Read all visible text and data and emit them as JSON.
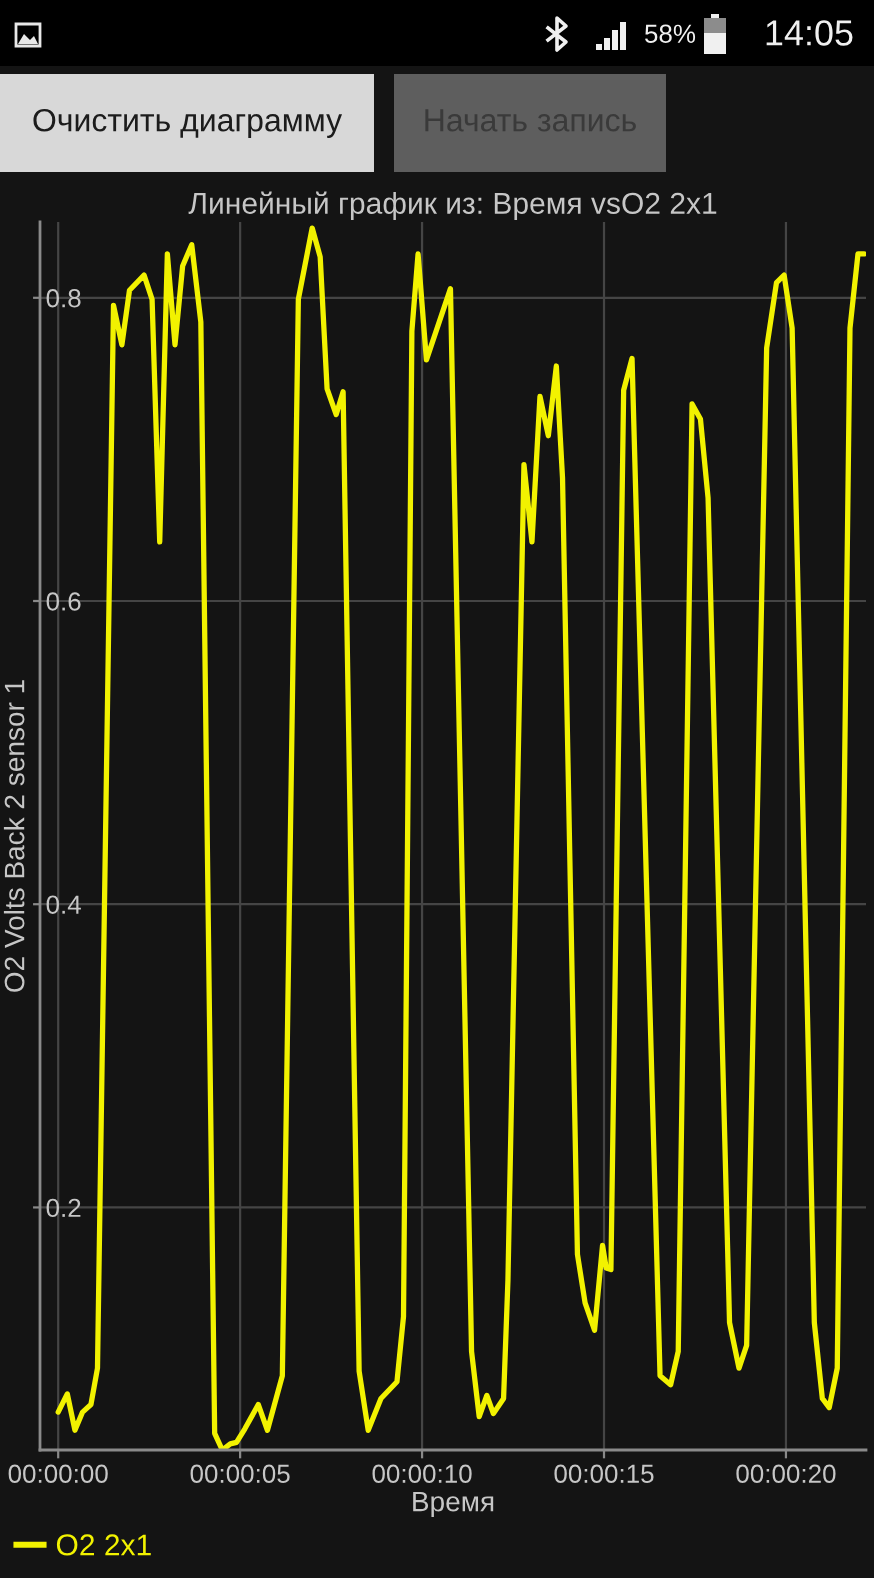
{
  "chart_data": {
    "type": "line",
    "title": "Линейный график из: Время vsO2 2x1",
    "xlabel": "Время",
    "ylabel": "O2 Volts Back 2 sensor 1",
    "x": [
      0.0,
      0.25,
      0.46,
      0.67,
      0.9,
      1.08,
      1.52,
      1.75,
      1.96,
      2.36,
      2.58,
      2.79,
      3.0,
      3.21,
      3.42,
      3.67,
      3.92,
      4.3,
      4.51,
      4.73,
      4.9,
      5.13,
      5.5,
      5.75,
      6.16,
      6.6,
      6.98,
      7.2,
      7.39,
      7.64,
      7.83,
      8.27,
      8.52,
      8.87,
      9.31,
      9.49,
      9.72,
      9.89,
      10.12,
      10.78,
      11.36,
      11.57,
      11.78,
      11.96,
      12.24,
      12.36,
      12.8,
      13.02,
      13.24,
      13.47,
      13.69,
      13.86,
      14.27,
      14.48,
      14.74,
      14.96,
      15.06,
      15.19,
      15.54,
      15.77,
      16.54,
      16.83,
      17.04,
      17.42,
      17.65,
      17.86,
      18.45,
      18.71,
      18.92,
      19.47,
      19.74,
      19.95,
      20.17,
      20.78,
      21.0,
      21.19,
      21.41,
      21.76,
      21.98,
      22.15
    ],
    "series": [
      {
        "name": "O2 2x1",
        "color": "#f2f200",
        "values": [
          0.065,
          0.077,
          0.053,
          0.065,
          0.07,
          0.094,
          0.795,
          0.769,
          0.805,
          0.815,
          0.799,
          0.639,
          0.829,
          0.769,
          0.821,
          0.835,
          0.784,
          0.051,
          0.04,
          0.044,
          0.045,
          0.054,
          0.07,
          0.053,
          0.089,
          0.799,
          0.846,
          0.827,
          0.74,
          0.723,
          0.738,
          0.092,
          0.053,
          0.074,
          0.085,
          0.128,
          0.778,
          0.829,
          0.759,
          0.806,
          0.105,
          0.062,
          0.076,
          0.064,
          0.074,
          0.152,
          0.69,
          0.639,
          0.735,
          0.709,
          0.755,
          0.681,
          0.169,
          0.137,
          0.119,
          0.175,
          0.16,
          0.159,
          0.739,
          0.76,
          0.089,
          0.083,
          0.105,
          0.73,
          0.72,
          0.668,
          0.124,
          0.094,
          0.109,
          0.767,
          0.81,
          0.815,
          0.78,
          0.124,
          0.074,
          0.068,
          0.094,
          0.78,
          0.829,
          0.829
        ]
      }
    ],
    "xlim": [
      -0.5,
      22.2
    ],
    "xticks": [
      {
        "value": 0,
        "label": "00:00:00"
      },
      {
        "value": 5,
        "label": "00:00:05"
      },
      {
        "value": 10,
        "label": "00:00:10"
      },
      {
        "value": 15,
        "label": "00:00:15"
      },
      {
        "value": 20,
        "label": "00:00:20"
      }
    ],
    "ylim": [
      0.04,
      0.85
    ],
    "yticks": [
      0.2,
      0.4,
      0.6,
      0.8
    ],
    "grid": true,
    "legend": "bottom left",
    "line_style": "solid",
    "annotations": [
      "Очистить диаграмму",
      "Начать запись",
      "58%",
      "14:05"
    ]
  }
}
